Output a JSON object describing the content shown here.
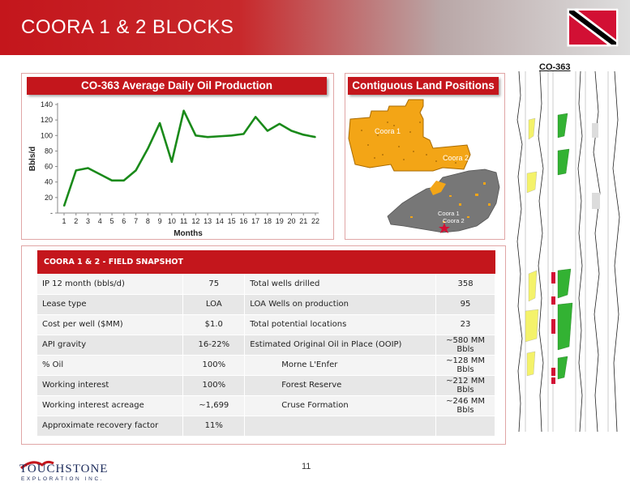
{
  "header": {
    "title": "COORA 1 & 2 BLOCKS"
  },
  "colors": {
    "brand_red": "#c4161c",
    "line_green": "#1a8a1a",
    "panel_border": "#e0a6a6"
  },
  "chart_panel": {
    "title": "CO-363 Average Daily Oil Production"
  },
  "chart_data": {
    "type": "line",
    "title": "CO-363 Average Daily Oil Production",
    "xlabel": "Months",
    "ylabel": "Bbls/d",
    "ylim": [
      0,
      140
    ],
    "yticks": [
      "-",
      "20",
      "40",
      "60",
      "80",
      "100",
      "120",
      "140"
    ],
    "categories": [
      "1",
      "2",
      "3",
      "4",
      "5",
      "6",
      "7",
      "8",
      "9",
      "10",
      "11",
      "12",
      "13",
      "14",
      "15",
      "16",
      "17",
      "18",
      "19",
      "20",
      "21",
      "22"
    ],
    "series": [
      {
        "values": [
          9,
          55,
          58,
          50,
          42,
          42,
          55,
          83,
          116,
          66,
          132,
          100,
          98,
          99,
          100,
          102,
          124,
          106,
          115,
          106,
          101,
          98
        ]
      }
    ]
  },
  "map_panel": {
    "title": "Contiguous Land Positions",
    "labels": {
      "coora1": "Coora 1",
      "coora2": "Coora 2",
      "inset1": "Coora 1",
      "inset2": "Coora 2"
    }
  },
  "log": {
    "label": "CO-363"
  },
  "snapshot": {
    "header": "COORA 1 & 2 - FIELD SNAPSHOT",
    "rows": [
      {
        "l1": "IP 12 month (bbls/d)",
        "v1": "75",
        "l2": "Total wells drilled",
        "v2": "358"
      },
      {
        "l1": "Lease type",
        "v1": "LOA",
        "l2": "LOA Wells on production",
        "v2": "95"
      },
      {
        "l1": "Cost per well ($MM)",
        "v1": "$1.0",
        "l2": "Total potential locations",
        "v2": "23"
      },
      {
        "l1": "API gravity",
        "v1": "16-22%",
        "l2": "Estimated Original Oil in Place (OOIP)",
        "v2": "~580 MM Bbls"
      },
      {
        "l1": "% Oil",
        "v1": "100%",
        "l2": "Morne L'Enfer",
        "v2": "~128 MM Bbls"
      },
      {
        "l1": "Working interest",
        "v1": "100%",
        "l2": "Forest Reserve",
        "v2": "~212 MM Bbls"
      },
      {
        "l1": "Working interest acreage",
        "v1": "~1,699",
        "l2": "Cruse Formation",
        "v2": "~246 MM Bbls"
      },
      {
        "l1": "Approximate recovery factor",
        "v1": "11%",
        "l2": "",
        "v2": ""
      }
    ]
  },
  "footer": {
    "logo_main": "TOUCHSTONE",
    "logo_sub": "EXPLORATION INC.",
    "page_number": "11"
  }
}
